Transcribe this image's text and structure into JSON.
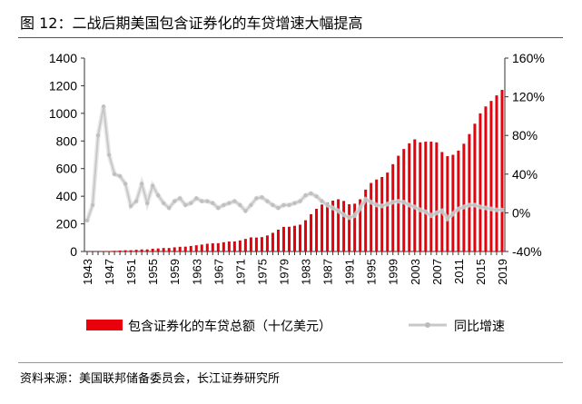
{
  "title": "图 12：二战后期美国包含证券化的车贷增速大幅提高",
  "source": "资料来源：美国联邦储备委员会，长江证券研究所",
  "chart_data": {
    "type": "bar+line",
    "title": "图 12：二战后期美国包含证券化的车贷增速大幅提高",
    "years": [
      1943,
      1944,
      1945,
      1946,
      1947,
      1948,
      1949,
      1950,
      1951,
      1952,
      1953,
      1954,
      1955,
      1956,
      1957,
      1958,
      1959,
      1960,
      1961,
      1962,
      1963,
      1964,
      1965,
      1966,
      1967,
      1968,
      1969,
      1970,
      1971,
      1972,
      1973,
      1974,
      1975,
      1976,
      1977,
      1978,
      1979,
      1980,
      1981,
      1982,
      1983,
      1984,
      1985,
      1986,
      1987,
      1988,
      1989,
      1990,
      1991,
      1992,
      1993,
      1994,
      1995,
      1996,
      1997,
      1998,
      1999,
      2000,
      2001,
      2002,
      2003,
      2004,
      2005,
      2006,
      2007,
      2008,
      2009,
      2010,
      2011,
      2012,
      2013,
      2014,
      2015,
      2016,
      2017,
      2018,
      2019
    ],
    "x_tick_labels": [
      "1943",
      "1947",
      "1951",
      "1955",
      "1959",
      "1963",
      "1967",
      "1971",
      "1975",
      "1979",
      "1983",
      "1987",
      "1991",
      "1995",
      "1999",
      "2003",
      "2007",
      "2011",
      "2015",
      "2019"
    ],
    "series": [
      {
        "name": "包含证券化的车贷总额（十亿美元）",
        "type": "bar",
        "axis": "left",
        "color": "#e8000b",
        "values": [
          1,
          1,
          1,
          2,
          3,
          5,
          7,
          9,
          9,
          12,
          15,
          15,
          20,
          22,
          25,
          25,
          30,
          34,
          35,
          40,
          45,
          50,
          56,
          59,
          60,
          67,
          72,
          73,
          80,
          91,
          102,
          101,
          104,
          116,
          135,
          158,
          178,
          179,
          186,
          194,
          226,
          270,
          309,
          340,
          355,
          368,
          378,
          366,
          342,
          346,
          378,
          448,
          496,
          521,
          539,
          571,
          632,
          693,
          742,
          783,
          812,
          790,
          795,
          795,
          790,
          720,
          690,
          700,
          730,
          780,
          850,
          925,
          1000,
          1050,
          1090,
          1130,
          1170
        ]
      },
      {
        "name": "同比增速",
        "type": "line",
        "axis": "right",
        "color": "#c8c8c8",
        "values": [
          -8,
          8,
          80,
          110,
          60,
          40,
          38,
          30,
          7,
          12,
          30,
          10,
          28,
          18,
          10,
          5,
          12,
          15,
          8,
          10,
          15,
          12,
          12,
          10,
          5,
          8,
          10,
          12,
          8,
          2,
          8,
          15,
          16,
          12,
          8,
          5,
          8,
          8,
          10,
          12,
          18,
          20,
          17,
          12,
          8,
          5,
          2,
          -2,
          -5,
          -3,
          5,
          14,
          11,
          8,
          7,
          9,
          11,
          12,
          11,
          8,
          6,
          3,
          1,
          -3,
          0,
          2,
          -6,
          -1,
          4,
          6,
          8,
          8,
          6,
          5,
          4,
          3,
          3
        ]
      }
    ],
    "left_axis": {
      "ylim": [
        0,
        1400
      ],
      "ticks": [
        "0",
        "200",
        "400",
        "600",
        "800",
        "1000",
        "1200",
        "1400"
      ]
    },
    "right_axis": {
      "ylim": [
        -40,
        160
      ],
      "ticks": [
        "-40%",
        "0%",
        "40%",
        "80%",
        "120%",
        "160%"
      ]
    },
    "legend_position": "bottom",
    "grid": false
  }
}
